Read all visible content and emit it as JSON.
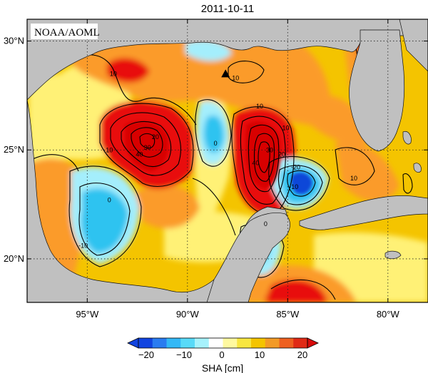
{
  "title": "2011-10-11",
  "credit": "NOAA/AOML",
  "colors": {
    "land": "#c0c0c0",
    "ocean_base": "#f4c400",
    "neg_strong": "#0a46d8",
    "neg_mid": "#2fc3f0",
    "neg_light": "#a4eefc",
    "pos_light": "#fff176",
    "pos_mid": "#fb9b2a",
    "pos_strong": "#e80e0e",
    "contour": "#000000"
  },
  "map": {
    "lon_range": [
      -98,
      -78
    ],
    "lat_range": [
      18,
      31
    ],
    "lon_ticks": [
      {
        "value": -95,
        "label": "95°W"
      },
      {
        "value": -90,
        "label": "90°W"
      },
      {
        "value": -85,
        "label": "85°W"
      },
      {
        "value": -80,
        "label": "80°W"
      }
    ],
    "lat_ticks": [
      {
        "value": 20,
        "label": "20°N"
      },
      {
        "value": 25,
        "label": "25°N"
      },
      {
        "value": 30,
        "label": "30°N"
      }
    ],
    "marker": {
      "name": "triangle-marker",
      "lon": -88.1,
      "lat": 28.5
    },
    "contour_labels": [
      {
        "text": "10",
        "lon": -93.7,
        "lat": 28.4
      },
      {
        "text": "10",
        "lon": -87.6,
        "lat": 28.2
      },
      {
        "text": "10",
        "lon": -86.4,
        "lat": 26.9
      },
      {
        "text": "10",
        "lon": -85.1,
        "lat": 25.9
      },
      {
        "text": "10",
        "lon": -93.9,
        "lat": 24.9
      },
      {
        "text": "10",
        "lon": -81.7,
        "lat": 23.6
      },
      {
        "text": "20",
        "lon": -91.6,
        "lat": 25.5
      },
      {
        "text": "20",
        "lon": -85.3,
        "lat": 24.7
      },
      {
        "text": "30",
        "lon": -92.0,
        "lat": 25.0
      },
      {
        "text": "30",
        "lon": -85.9,
        "lat": 24.9
      },
      {
        "text": "40",
        "lon": -92.4,
        "lat": 24.7
      },
      {
        "text": "40",
        "lon": -86.6,
        "lat": 24.3
      },
      {
        "text": "0",
        "lon": -88.6,
        "lat": 25.2
      },
      {
        "text": "0",
        "lon": -93.9,
        "lat": 22.6
      },
      {
        "text": "0",
        "lon": -86.1,
        "lat": 21.5
      },
      {
        "text": "-10",
        "lon": -95.2,
        "lat": 20.5
      },
      {
        "text": "-10",
        "lon": -84.7,
        "lat": 23.2
      },
      {
        "text": "-20",
        "lon": -84.6,
        "lat": 24.1
      }
    ]
  },
  "colorbar": {
    "label": "SHA [cm]",
    "ticks": [
      "−20",
      "−10",
      "0",
      "10",
      "20"
    ]
  }
}
